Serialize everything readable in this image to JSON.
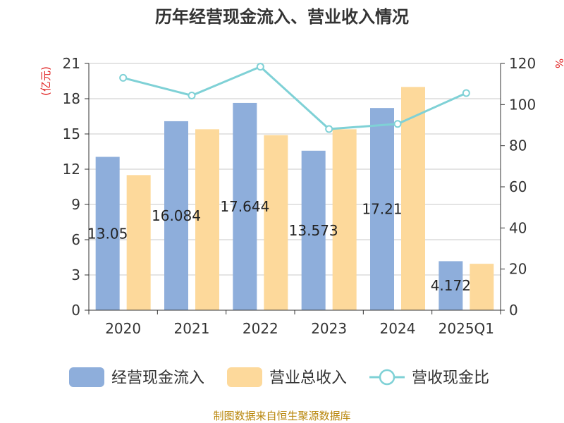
{
  "title": "历年经营现金流入、营业收入情况",
  "source": "制图数据来自恒生聚源数据库",
  "chart_data": {
    "type": "bar",
    "categories": [
      "2020",
      "2021",
      "2022",
      "2023",
      "2024",
      "2025Q1"
    ],
    "left_axis": {
      "unit": "(亿元)",
      "ylim": [
        0,
        21
      ],
      "ticks": [
        0,
        3,
        6,
        9,
        12,
        15,
        18,
        21
      ]
    },
    "right_axis": {
      "unit": "%",
      "ylim": [
        0,
        120
      ],
      "ticks": [
        0,
        20,
        40,
        60,
        80,
        100,
        120
      ]
    },
    "grid": true,
    "legend_position": "bottom",
    "series": [
      {
        "name": "经营现金流入",
        "type": "bar",
        "axis": "left",
        "color": "#8eaedb",
        "values": [
          13.05,
          16.084,
          17.644,
          13.573,
          17.21,
          4.172
        ],
        "labels": [
          "13.05",
          "16.084",
          "17.644",
          "13.573",
          "17.21",
          "4.172"
        ]
      },
      {
        "name": "营业总收入",
        "type": "bar",
        "axis": "left",
        "color": "#fdd99b",
        "values": [
          11.5,
          15.4,
          14.9,
          15.4,
          19.0,
          3.95
        ]
      },
      {
        "name": "营收现金比",
        "type": "line",
        "axis": "right",
        "color": "#7fd1d6",
        "values": [
          113.0,
          104.4,
          118.4,
          88.1,
          90.6,
          105.6
        ]
      }
    ]
  }
}
